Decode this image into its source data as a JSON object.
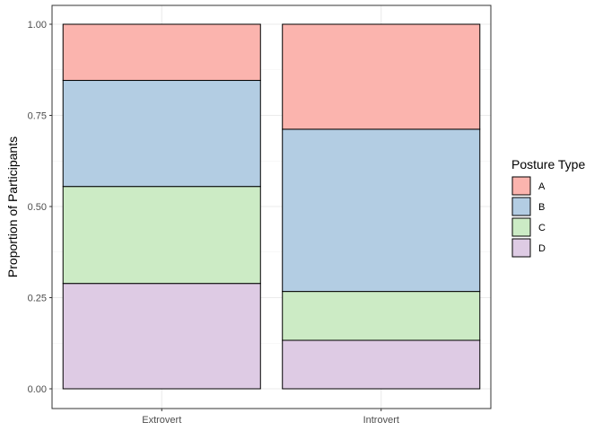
{
  "chart_data": {
    "type": "bar",
    "stacked": true,
    "categories": [
      "Extrovert",
      "Introvert"
    ],
    "series": [
      {
        "name": "D",
        "values": [
          0.289,
          0.133
        ],
        "color": "#DECBE4"
      },
      {
        "name": "C",
        "values": [
          0.266,
          0.134
        ],
        "color": "#CCEBC5"
      },
      {
        "name": "B",
        "values": [
          0.291,
          0.445
        ],
        "color": "#B3CDE3"
      },
      {
        "name": "A",
        "values": [
          0.154,
          0.288
        ],
        "color": "#FBB4AE"
      }
    ],
    "legend_order": [
      "A",
      "B",
      "C",
      "D"
    ],
    "ylabel": "Proportion of Participants",
    "xlabel": "",
    "ylim": [
      0,
      1.05
    ],
    "y_ticks": [
      "0.00",
      "0.25",
      "0.50",
      "0.75",
      "1.00"
    ],
    "legend_title": "Posture Type",
    "legend_position": "right",
    "grid": true
  }
}
